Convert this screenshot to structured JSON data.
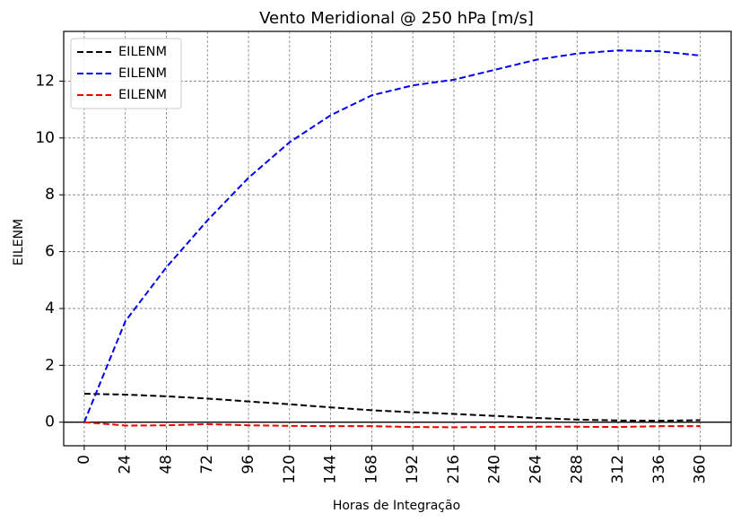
{
  "chart_data": {
    "type": "line",
    "title": "Vento Meridional @ 250 hPa [m/s]",
    "xlabel": "Horas de Integração",
    "ylabel": "EILENM",
    "x": [
      0,
      24,
      48,
      72,
      96,
      120,
      144,
      168,
      192,
      216,
      240,
      264,
      288,
      312,
      336,
      360
    ],
    "xticks": [
      "0",
      "24",
      "48",
      "72",
      "96",
      "120",
      "144",
      "168",
      "192",
      "216",
      "240",
      "264",
      "288",
      "312",
      "336",
      "360"
    ],
    "yticks": [
      "0",
      "2",
      "4",
      "6",
      "8",
      "10",
      "12"
    ],
    "xlim": [
      -12,
      378
    ],
    "ylim": [
      -0.83,
      13.75
    ],
    "grid": true,
    "legend_position": "top-left",
    "zero_line": true,
    "series": [
      {
        "name": "EILENM",
        "color": "#000000",
        "style": "dashed",
        "values": [
          1.0,
          0.97,
          0.91,
          0.83,
          0.73,
          0.63,
          0.52,
          0.42,
          0.35,
          0.29,
          0.22,
          0.15,
          0.09,
          0.06,
          0.05,
          0.07
        ]
      },
      {
        "name": "EILENM",
        "color": "#0000ee",
        "style": "dashed",
        "values": [
          0.0,
          3.55,
          5.45,
          7.1,
          8.6,
          9.85,
          10.8,
          11.5,
          11.85,
          12.05,
          12.4,
          12.75,
          12.97,
          13.08,
          13.05,
          12.9
        ]
      },
      {
        "name": "EILENM",
        "color": "#ee0000",
        "style": "dashed",
        "values": [
          0.0,
          -0.12,
          -0.11,
          -0.07,
          -0.11,
          -0.13,
          -0.14,
          -0.14,
          -0.17,
          -0.18,
          -0.17,
          -0.16,
          -0.16,
          -0.17,
          -0.14,
          -0.14
        ]
      }
    ]
  }
}
